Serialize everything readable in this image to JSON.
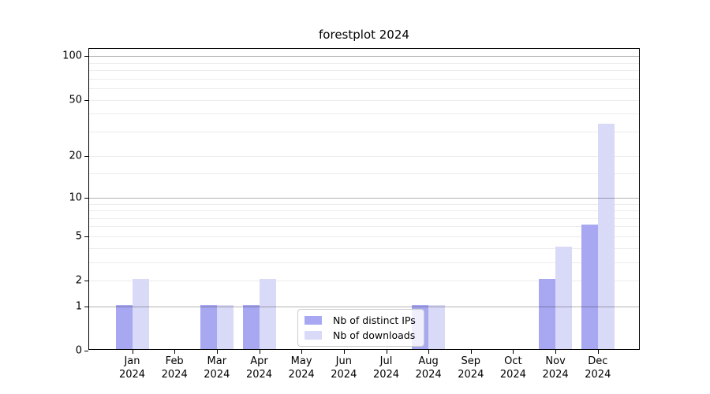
{
  "chart_data": {
    "type": "bar",
    "title": "forestplot 2024",
    "categories": [
      "Jan 2024",
      "Feb 2024",
      "Mar 2024",
      "Apr 2024",
      "May 2024",
      "Jun 2024",
      "Jul 2024",
      "Aug 2024",
      "Sep 2024",
      "Oct 2024",
      "Nov 2024",
      "Dec 2024"
    ],
    "series": [
      {
        "name": "Nb of distinct IPs",
        "color": "#a8a8f2",
        "values": [
          1,
          0,
          1,
          1,
          0,
          0,
          0,
          1,
          0,
          0,
          2,
          6
        ]
      },
      {
        "name": "Nb of downloads",
        "color": "#d9d9f8",
        "values": [
          2,
          0,
          1,
          2,
          0,
          0,
          0,
          1,
          0,
          0,
          4,
          33
        ]
      }
    ],
    "xlabel": "",
    "ylabel": "",
    "yscale": "log1p",
    "ylim": [
      0,
      112
    ],
    "y_tick_values": [
      0,
      1,
      2,
      5,
      10,
      20,
      50,
      100
    ],
    "y_tick_labels": [
      "0",
      "1",
      "2",
      "5",
      "10",
      "20",
      "50",
      "100"
    ],
    "gridlines": {
      "strong": [
        1,
        10,
        100
      ],
      "light": [
        2,
        3,
        4,
        5,
        6,
        7,
        8,
        9,
        15,
        20,
        30,
        40,
        50,
        60,
        70,
        80,
        90
      ]
    },
    "grid": "horizontal",
    "legend_position": "lower center"
  }
}
